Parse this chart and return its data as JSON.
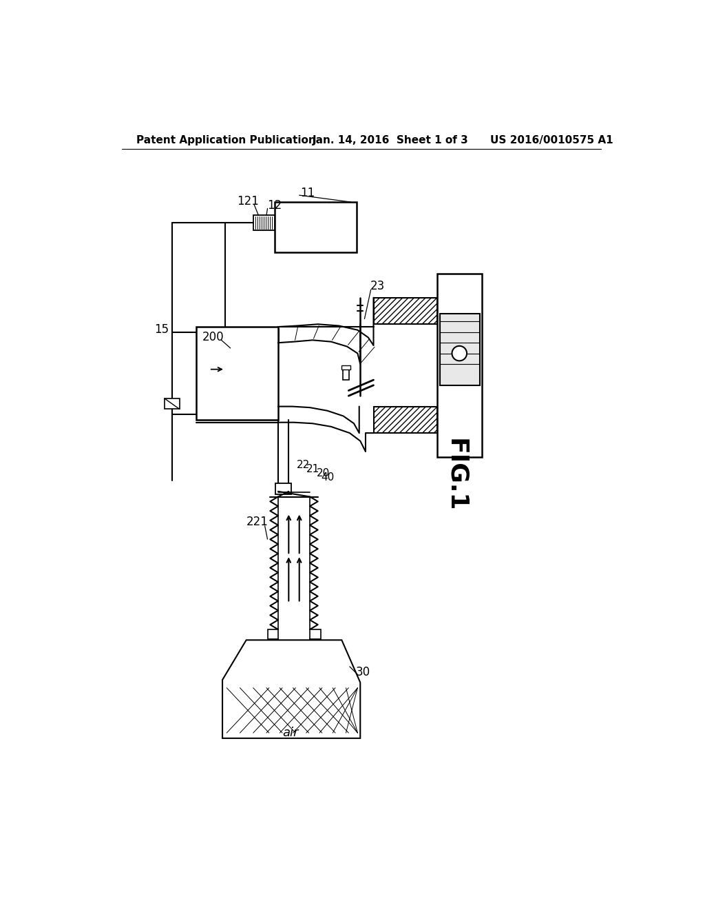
{
  "bg_color": "#ffffff",
  "line_color": "#000000",
  "header_left": "Patent Application Publication",
  "header_mid": "Jan. 14, 2016  Sheet 1 of 3",
  "header_right": "US 2016/0010575 A1",
  "fig_label": "FIG.1"
}
